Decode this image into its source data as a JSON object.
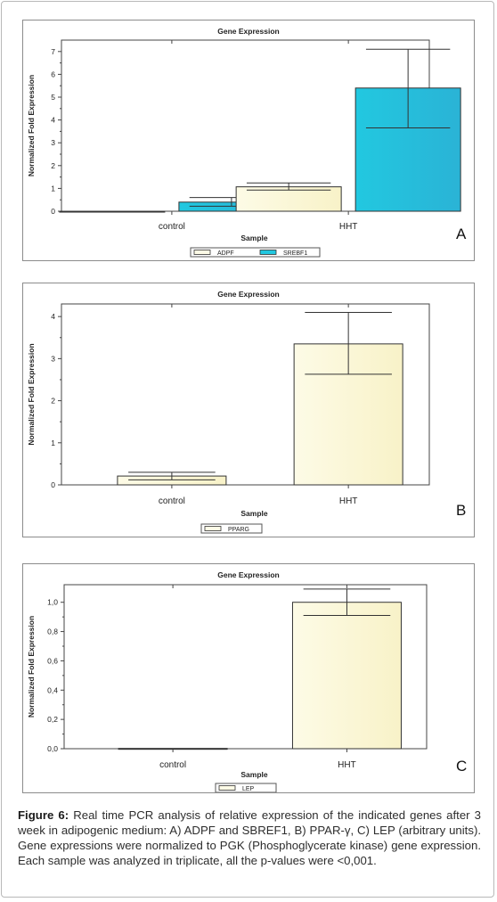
{
  "chart_data": [
    {
      "type": "bar",
      "panel_label": "A",
      "title": "Gene Expression",
      "xlabel": "Sample",
      "ylabel": "Normalized Fold Expression",
      "categories": [
        "control",
        "HHT"
      ],
      "ylim": [
        0,
        7.5
      ],
      "yticks": [
        0,
        1,
        2,
        3,
        4,
        5,
        6,
        7
      ],
      "tick_labels": [
        "0",
        "1",
        "2",
        "3",
        "4",
        "5",
        "6",
        "7"
      ],
      "series": [
        {
          "name": "ADPF",
          "color": "#fdfbe6",
          "values": [
            0.0,
            1.07
          ],
          "err_low": [
            0.0,
            0.93
          ],
          "err_high": [
            0.0,
            1.24
          ]
        },
        {
          "name": "SREBF1",
          "color": "#22c8e0",
          "values": [
            0.4,
            5.4
          ],
          "err_low": [
            0.22,
            3.65
          ],
          "err_high": [
            0.6,
            7.1
          ]
        }
      ]
    },
    {
      "type": "bar",
      "panel_label": "B",
      "title": "Gene Expression",
      "xlabel": "Sample",
      "ylabel": "Normalized Fold Expression",
      "categories": [
        "control",
        "HHT"
      ],
      "ylim": [
        0,
        4.3
      ],
      "yticks": [
        0,
        1,
        2,
        3,
        4
      ],
      "tick_labels": [
        "0",
        "1",
        "2",
        "3",
        "4"
      ],
      "series": [
        {
          "name": "PPARG",
          "color": "#fdfbe6",
          "values": [
            0.21,
            3.35
          ],
          "err_low": [
            0.12,
            2.63
          ],
          "err_high": [
            0.3,
            4.1
          ]
        }
      ]
    },
    {
      "type": "bar",
      "panel_label": "C",
      "title": "Gene Expression",
      "xlabel": "Sample",
      "ylabel": "Normalized Fold Expression",
      "categories": [
        "control",
        "HHT"
      ],
      "ylim": [
        0,
        1.12
      ],
      "yticks": [
        0,
        0.2,
        0.4,
        0.6,
        0.8,
        1.0
      ],
      "tick_labels": [
        "0,0",
        "0,2",
        "0,4",
        "0,6",
        "0,8",
        "1,0"
      ],
      "series": [
        {
          "name": "LEP",
          "color": "#fdfbe6",
          "values": [
            0.002,
            1.0
          ],
          "err_low": [
            0.002,
            0.91
          ],
          "err_high": [
            0.002,
            1.09
          ]
        }
      ]
    }
  ],
  "caption": {
    "label": "Figure 6:",
    "text": "Real time PCR analysis of relative expression of the indicated genes after 3 week in adipogenic medium: A) ADPF and SBREF1, B) PPAR-γ, C) LEP (arbitrary units). Gene expressions were normalized to PGK (Phosphoglycerate kinase) gene expression. Each sample was analyzed in triplicate, all the p-values were <0,001."
  }
}
